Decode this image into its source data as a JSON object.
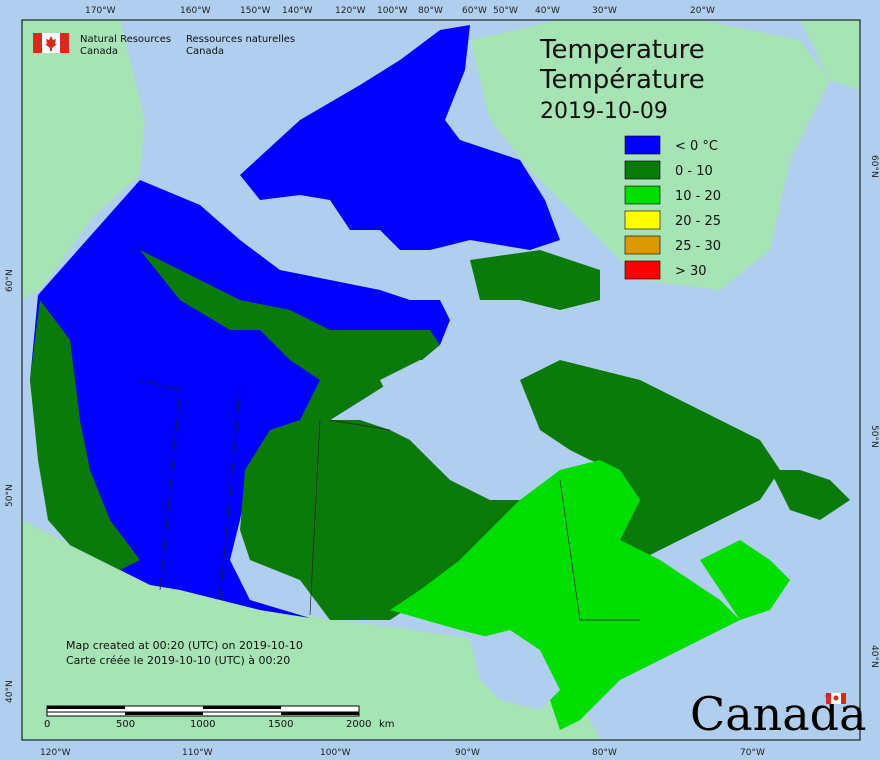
{
  "header": {
    "agency_en_line1": "Natural Resources",
    "agency_en_line2": "Canada",
    "agency_fr_line1": "Ressources naturelles",
    "agency_fr_line2": "Canada"
  },
  "title": {
    "line1": "Temperature",
    "line2": "Température",
    "date": "2019-10-09"
  },
  "legend": [
    {
      "label": "< 0 °C",
      "color": "#0000ff"
    },
    {
      "label": "0 - 10",
      "color": "#0a7a0a"
    },
    {
      "label": "10 - 20",
      "color": "#00dd00"
    },
    {
      "label": "20 - 25",
      "color": "#ffff00"
    },
    {
      "label": "25 - 30",
      "color": "#dd9900"
    },
    {
      "label": "> 30",
      "color": "#ff0000"
    }
  ],
  "credits": {
    "line1": "Map created at 00:20 (UTC) on 2019-10-10",
    "line2": "Carte créée le 2019-10-10 (UTC) à 00:20"
  },
  "scalebar": {
    "ticks": [
      "0",
      "500",
      "1000",
      "1500",
      "2000"
    ],
    "unit": "km"
  },
  "graticule": {
    "top": [
      "170°W",
      "160°W",
      "150°W",
      "140°W",
      "120°W",
      "100°W",
      "80°W",
      "60°W",
      "50°W",
      "40°W",
      "30°W",
      "20°W"
    ],
    "bottom": [
      "120°W",
      "110°W",
      "100°W",
      "90°W",
      "80°W",
      "70°W"
    ],
    "left": [
      "60°N",
      "50°N",
      "40°N"
    ],
    "right": [
      "60°N",
      "50°N",
      "40°N"
    ]
  },
  "wordmark": "Canada",
  "colors": {
    "ocean": "#b0cfee",
    "land_outside": "#a6e3b5",
    "ice_lake": "#b0cfee"
  }
}
